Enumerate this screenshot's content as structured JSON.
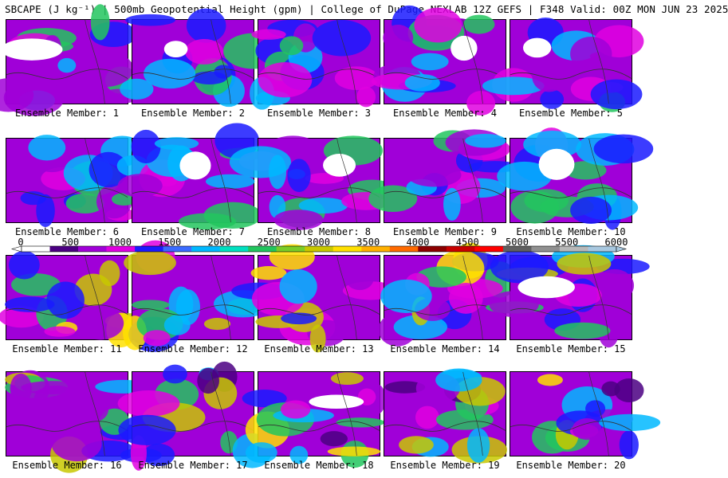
{
  "title": "SBCAPE (J kg⁻¹) | 500mb Geopotential Height (gpm) | College of DuPage NEXLAB 12Z GEFS | F348 Valid: 00Z MON JUN 23 2025",
  "members": [
    {
      "caption": "Ensemble Member: 1"
    },
    {
      "caption": "Ensemble Member: 2"
    },
    {
      "caption": "Ensemble Member: 3"
    },
    {
      "caption": "Ensemble Member: 4"
    },
    {
      "caption": "Ensemble Member: 5"
    },
    {
      "caption": "Ensemble Member: 6"
    },
    {
      "caption": "Ensemble Member: 7"
    },
    {
      "caption": "Ensemble Member: 8"
    },
    {
      "caption": "Ensemble Member: 9"
    },
    {
      "caption": "Ensemble Member: 10"
    },
    {
      "caption": "Ensemble Member: 11"
    },
    {
      "caption": "Ensemble Member: 12"
    },
    {
      "caption": "Ensemble Member: 13"
    },
    {
      "caption": "Ensemble Member: 14"
    },
    {
      "caption": "Ensemble Member: 15"
    },
    {
      "caption": "Ensemble Member: 16"
    },
    {
      "caption": "Ensemble Member: 17"
    },
    {
      "caption": "Ensemble Member: 18"
    },
    {
      "caption": "Ensemble Member: 19"
    },
    {
      "caption": "Ensemble Member: 20"
    }
  ],
  "colorbar": {
    "labels": [
      "0",
      "500",
      "1000",
      "1500",
      "2000",
      "2500",
      "3000",
      "3500",
      "4000",
      "4500",
      "5000",
      "5500",
      "6000"
    ],
    "colors": [
      "#ffffff",
      "#4b0082",
      "#a000d8",
      "#e000e0",
      "#1a1aff",
      "#3a6bff",
      "#00b8ff",
      "#00e0c0",
      "#22c55e",
      "#7acc29",
      "#c8c800",
      "#ffe000",
      "#ffb000",
      "#ff6a00",
      "#8b0000",
      "#c80000",
      "#ff0000",
      "#606060",
      "#909090",
      "#b8b8b8",
      "#a8c8e0"
    ]
  }
}
